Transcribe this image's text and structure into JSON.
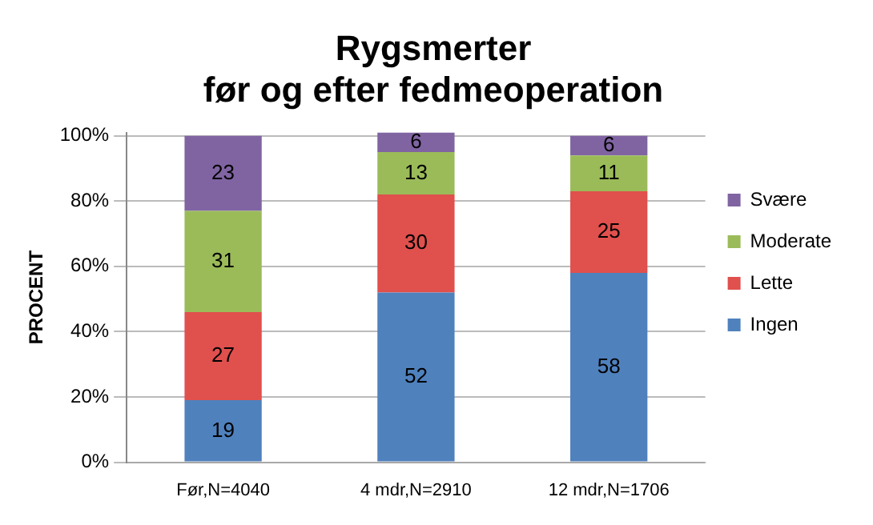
{
  "chart_data": {
    "type": "bar",
    "title": "Rygsmerter\nfør og efter fedmeoperation",
    "ylabel": "PROCENT",
    "stacked": true,
    "categories": [
      "Før,N=4040",
      "4 mdr,N=2910",
      "12 mdr,N=1706"
    ],
    "series": [
      {
        "name": "Ingen",
        "color": "#4f81bd",
        "values": [
          19,
          52,
          58
        ]
      },
      {
        "name": "Lette",
        "color": "#e0504d",
        "values": [
          27,
          30,
          25
        ]
      },
      {
        "name": "Moderate",
        "color": "#9bbb59",
        "values": [
          31,
          13,
          11
        ]
      },
      {
        "name": "Svære",
        "color": "#8064a2",
        "values": [
          23,
          6,
          6
        ]
      }
    ],
    "ylim": [
      0,
      101
    ],
    "yticks": [
      {
        "value": 0,
        "label": "0%"
      },
      {
        "value": 20,
        "label": "20%"
      },
      {
        "value": 40,
        "label": "40%"
      },
      {
        "value": 60,
        "label": "60%"
      },
      {
        "value": 80,
        "label": "80%"
      },
      {
        "value": 100,
        "label": "100%"
      }
    ],
    "grid": "y",
    "legend": "right",
    "data_labels": true
  }
}
